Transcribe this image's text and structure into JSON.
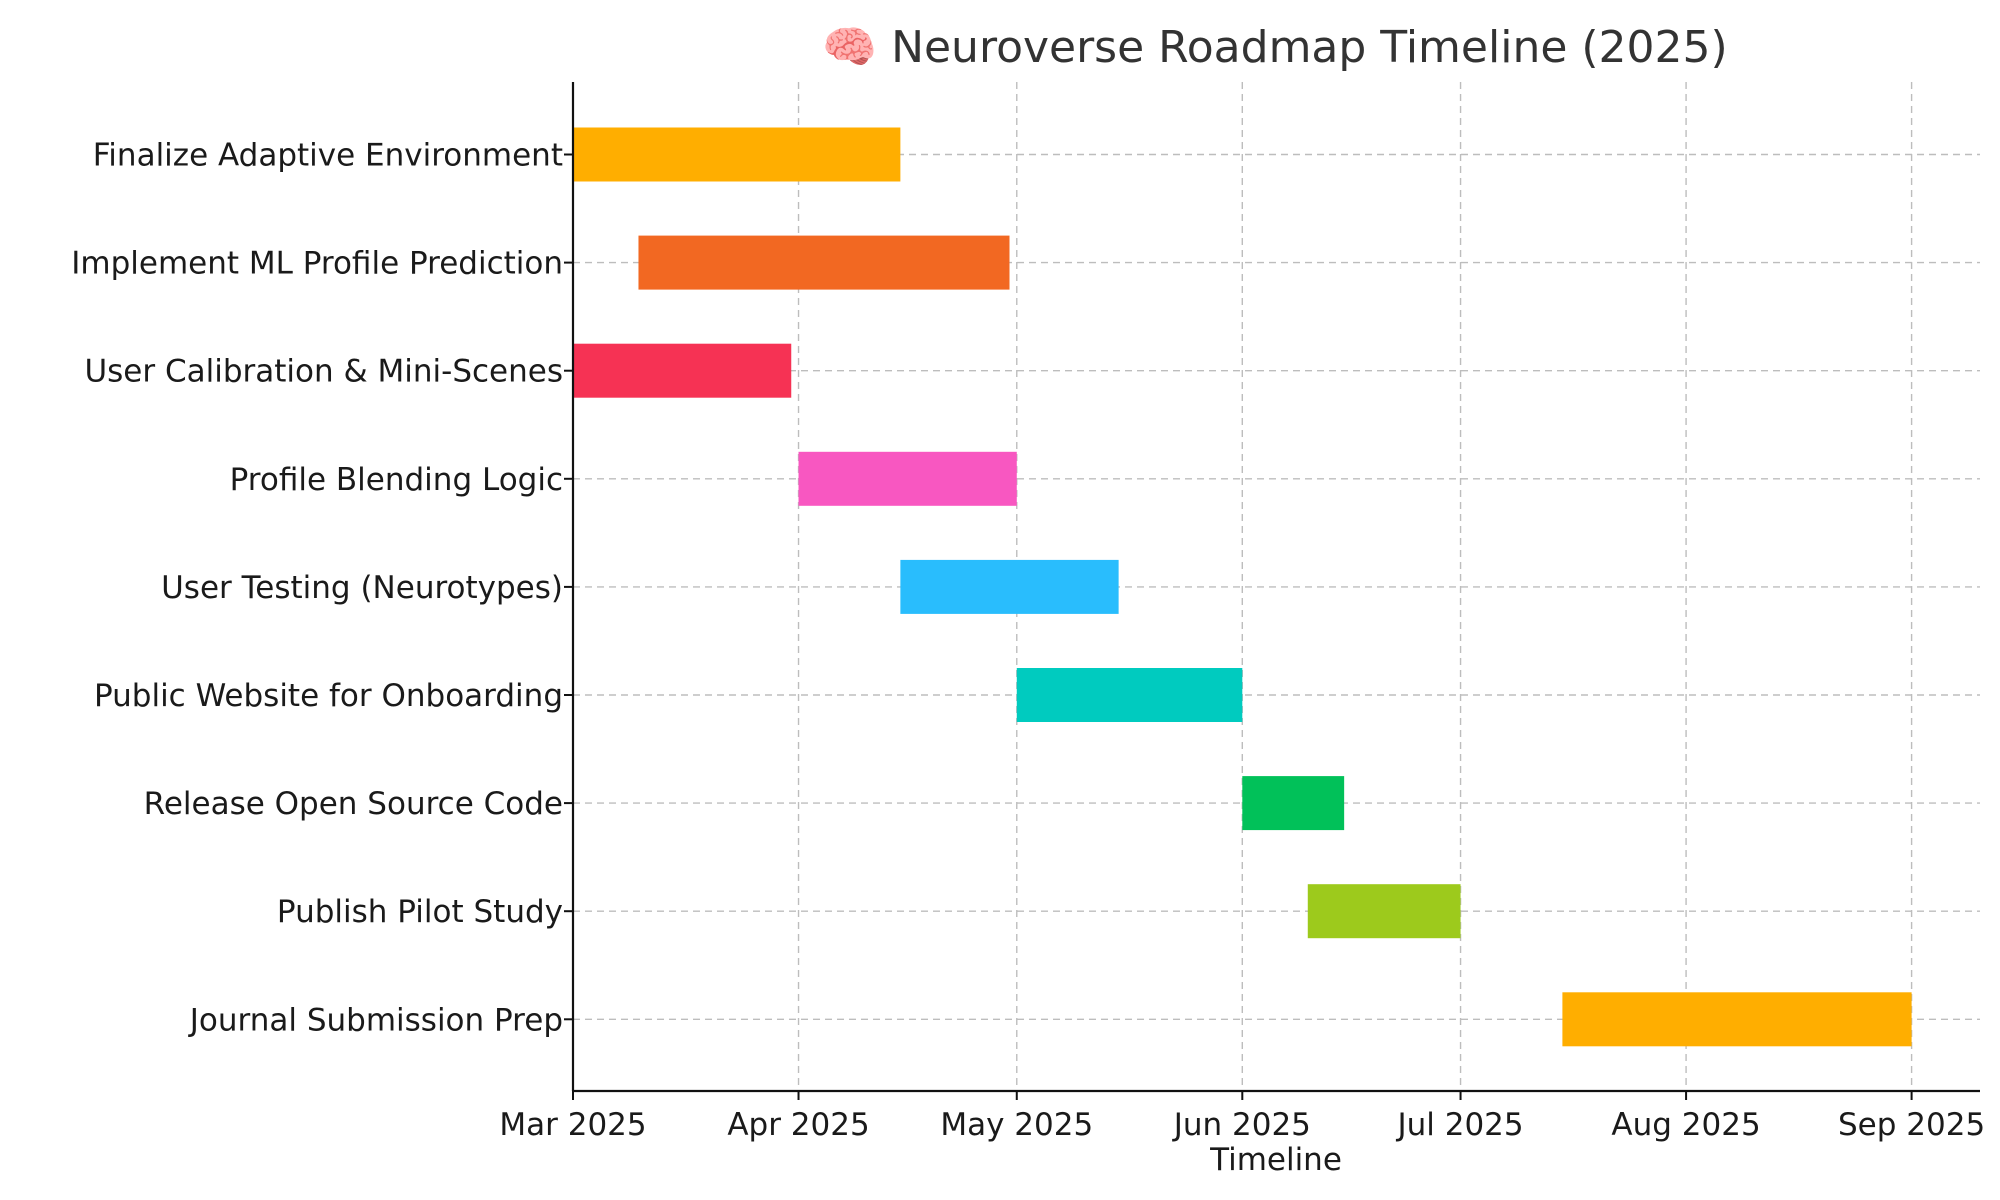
{
  "chart_data": {
    "type": "gantt",
    "title": "🧠 Neuroverse Roadmap Timeline (2025)",
    "title_icon": "brain-icon",
    "xlabel": "Timeline",
    "ylabel": "",
    "xlim": [
      "2025-03-01",
      "2025-09-08"
    ],
    "x_ticks": [
      {
        "date": "2025-03-01",
        "label": "Mar 2025"
      },
      {
        "date": "2025-04-01",
        "label": "Apr 2025"
      },
      {
        "date": "2025-05-01",
        "label": "May 2025"
      },
      {
        "date": "2025-06-01",
        "label": "Jun 2025"
      },
      {
        "date": "2025-07-01",
        "label": "Jul 2025"
      },
      {
        "date": "2025-08-01",
        "label": "Aug 2025"
      },
      {
        "date": "2025-09-01",
        "label": "Sep 2025"
      }
    ],
    "grid": true,
    "tasks": [
      {
        "name": "Finalize Adaptive Environment",
        "start": "2025-03-01",
        "end": "2025-04-15",
        "color": "#FFAE00"
      },
      {
        "name": "Implement ML Profile Prediction",
        "start": "2025-03-10",
        "end": "2025-04-30",
        "color": "#F26822"
      },
      {
        "name": "User Calibration & Mini-Scenes",
        "start": "2025-03-01",
        "end": "2025-03-31",
        "color": "#F63254"
      },
      {
        "name": "Profile Blending Logic",
        "start": "2025-04-01",
        "end": "2025-05-01",
        "color": "#F857C1"
      },
      {
        "name": "User Testing (Neurotypes)",
        "start": "2025-04-15",
        "end": "2025-05-15",
        "color": "#29BDFD"
      },
      {
        "name": "Public Website for Onboarding",
        "start": "2025-05-01",
        "end": "2025-06-01",
        "color": "#00CBBF"
      },
      {
        "name": "Release Open Source Code",
        "start": "2025-06-01",
        "end": "2025-06-15",
        "color": "#01C159"
      },
      {
        "name": "Publish Pilot Study",
        "start": "2025-06-10",
        "end": "2025-07-01",
        "color": "#9DCA1C"
      },
      {
        "name": "Journal Submission Prep",
        "start": "2025-07-15",
        "end": "2025-09-01",
        "color": "#FFAE00"
      }
    ]
  }
}
